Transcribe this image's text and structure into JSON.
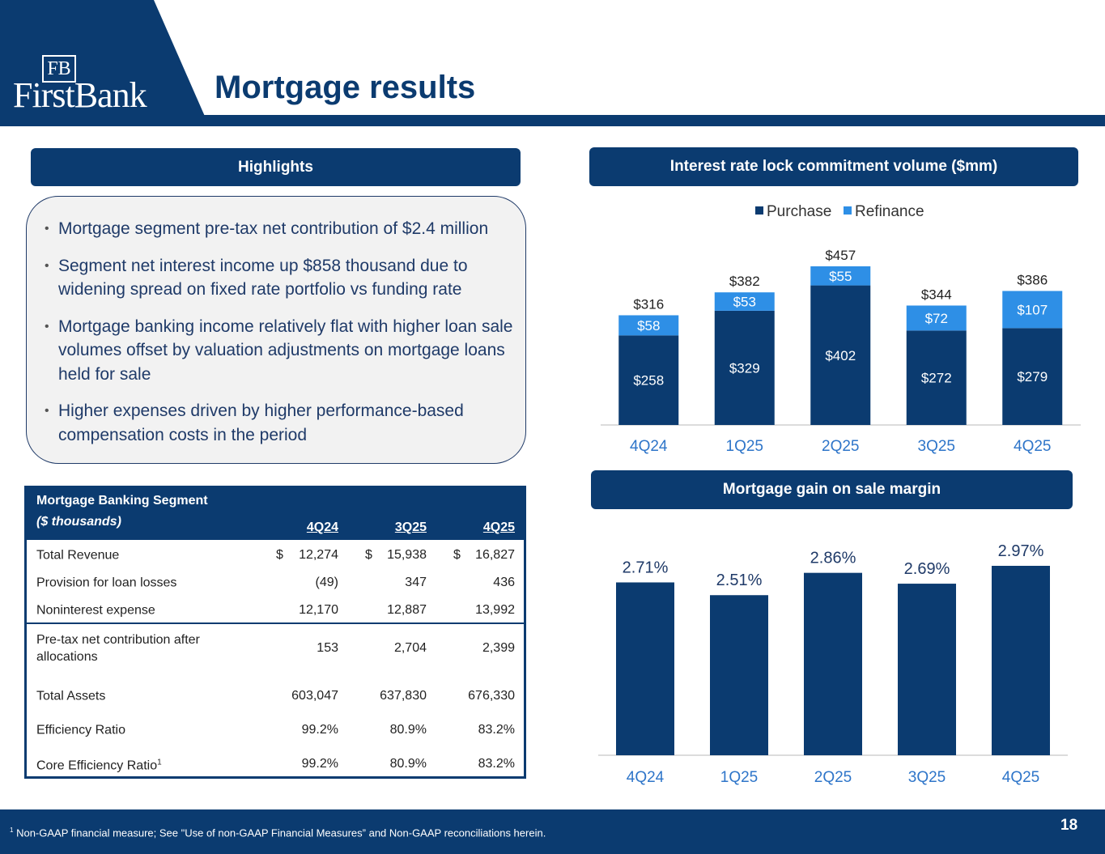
{
  "header": {
    "logo_monogram": "FB",
    "logo_text": "FirstBank",
    "title": "Mortgage results"
  },
  "highlights": {
    "heading": "Highlights",
    "bullets": [
      "Mortgage segment pre-tax net contribution of $2.4 million",
      "Segment net interest income up $858 thousand due to widening spread on fixed rate portfolio vs funding rate",
      "Mortgage banking income relatively flat with higher loan sale volumes offset by valuation adjustments on mortgage loans held for sale",
      "Higher expenses driven by higher performance-based compensation costs in the period"
    ]
  },
  "table": {
    "title": "Mortgage Banking Segment",
    "subtitle": "($ thousands)",
    "columns": [
      "4Q24",
      "3Q25",
      "4Q25"
    ],
    "rows": [
      {
        "label": "Total Revenue",
        "cells": [
          {
            "symbol": "$",
            "amount": "12,274"
          },
          {
            "symbol": "$",
            "amount": "15,938"
          },
          {
            "symbol": "$",
            "amount": "16,827"
          }
        ]
      },
      {
        "label": "Provision for loan losses",
        "cells": [
          "(49)",
          "347",
          "436"
        ]
      },
      {
        "label": "Noninterest expense",
        "cells": [
          "12,170",
          "12,887",
          "13,992"
        ]
      },
      {
        "label": "Pre-tax net contribution after allocations",
        "cells": [
          "153",
          "2,704",
          "2,399"
        ]
      },
      {
        "label": "Total Assets",
        "cells": [
          "603,047",
          "637,830",
          "676,330"
        ]
      },
      {
        "label": "Efficiency Ratio",
        "cells": [
          "99.2%",
          "80.9%",
          "83.2%"
        ]
      },
      {
        "label": "Core Efficiency Ratio",
        "note_mark": "1",
        "cells": [
          "99.2%",
          "80.9%",
          "83.2%"
        ]
      }
    ]
  },
  "chart_data": [
    {
      "type": "stacked-bar",
      "title": "Interest rate lock commitment volume ($mm)",
      "categories": [
        "4Q24",
        "1Q25",
        "2Q25",
        "3Q25",
        "4Q25"
      ],
      "series": [
        {
          "name": "Purchase",
          "color": "#0b3b70",
          "values": [
            258,
            329,
            402,
            272,
            279
          ],
          "value_labels": [
            "$258",
            "$329",
            "$402",
            "$272",
            "$279"
          ]
        },
        {
          "name": "Refinance",
          "color": "#2e8fe6",
          "values": [
            58,
            53,
            55,
            72,
            107
          ],
          "value_labels": [
            "$58",
            "$53",
            "$55",
            "$72",
            "$107"
          ]
        }
      ],
      "total_labels": [
        "$316",
        "$382",
        "$457",
        "$344",
        "$386"
      ],
      "legend": "top"
    },
    {
      "type": "bar",
      "title": "Mortgage gain on sale margin",
      "categories": [
        "4Q24",
        "1Q25",
        "2Q25",
        "3Q25",
        "4Q25"
      ],
      "values": [
        2.71,
        2.51,
        2.86,
        2.69,
        2.97
      ],
      "value_labels": [
        "2.71%",
        "2.51%",
        "2.86%",
        "2.69%",
        "2.97%"
      ],
      "color": "#0b3b70"
    }
  ],
  "footer": {
    "note_mark": "1",
    "footnote": "Non-GAAP financial measure; See \"Use of non-GAAP Financial Measures” and Non-GAAP reconciliations herein.",
    "page_number": "18"
  }
}
